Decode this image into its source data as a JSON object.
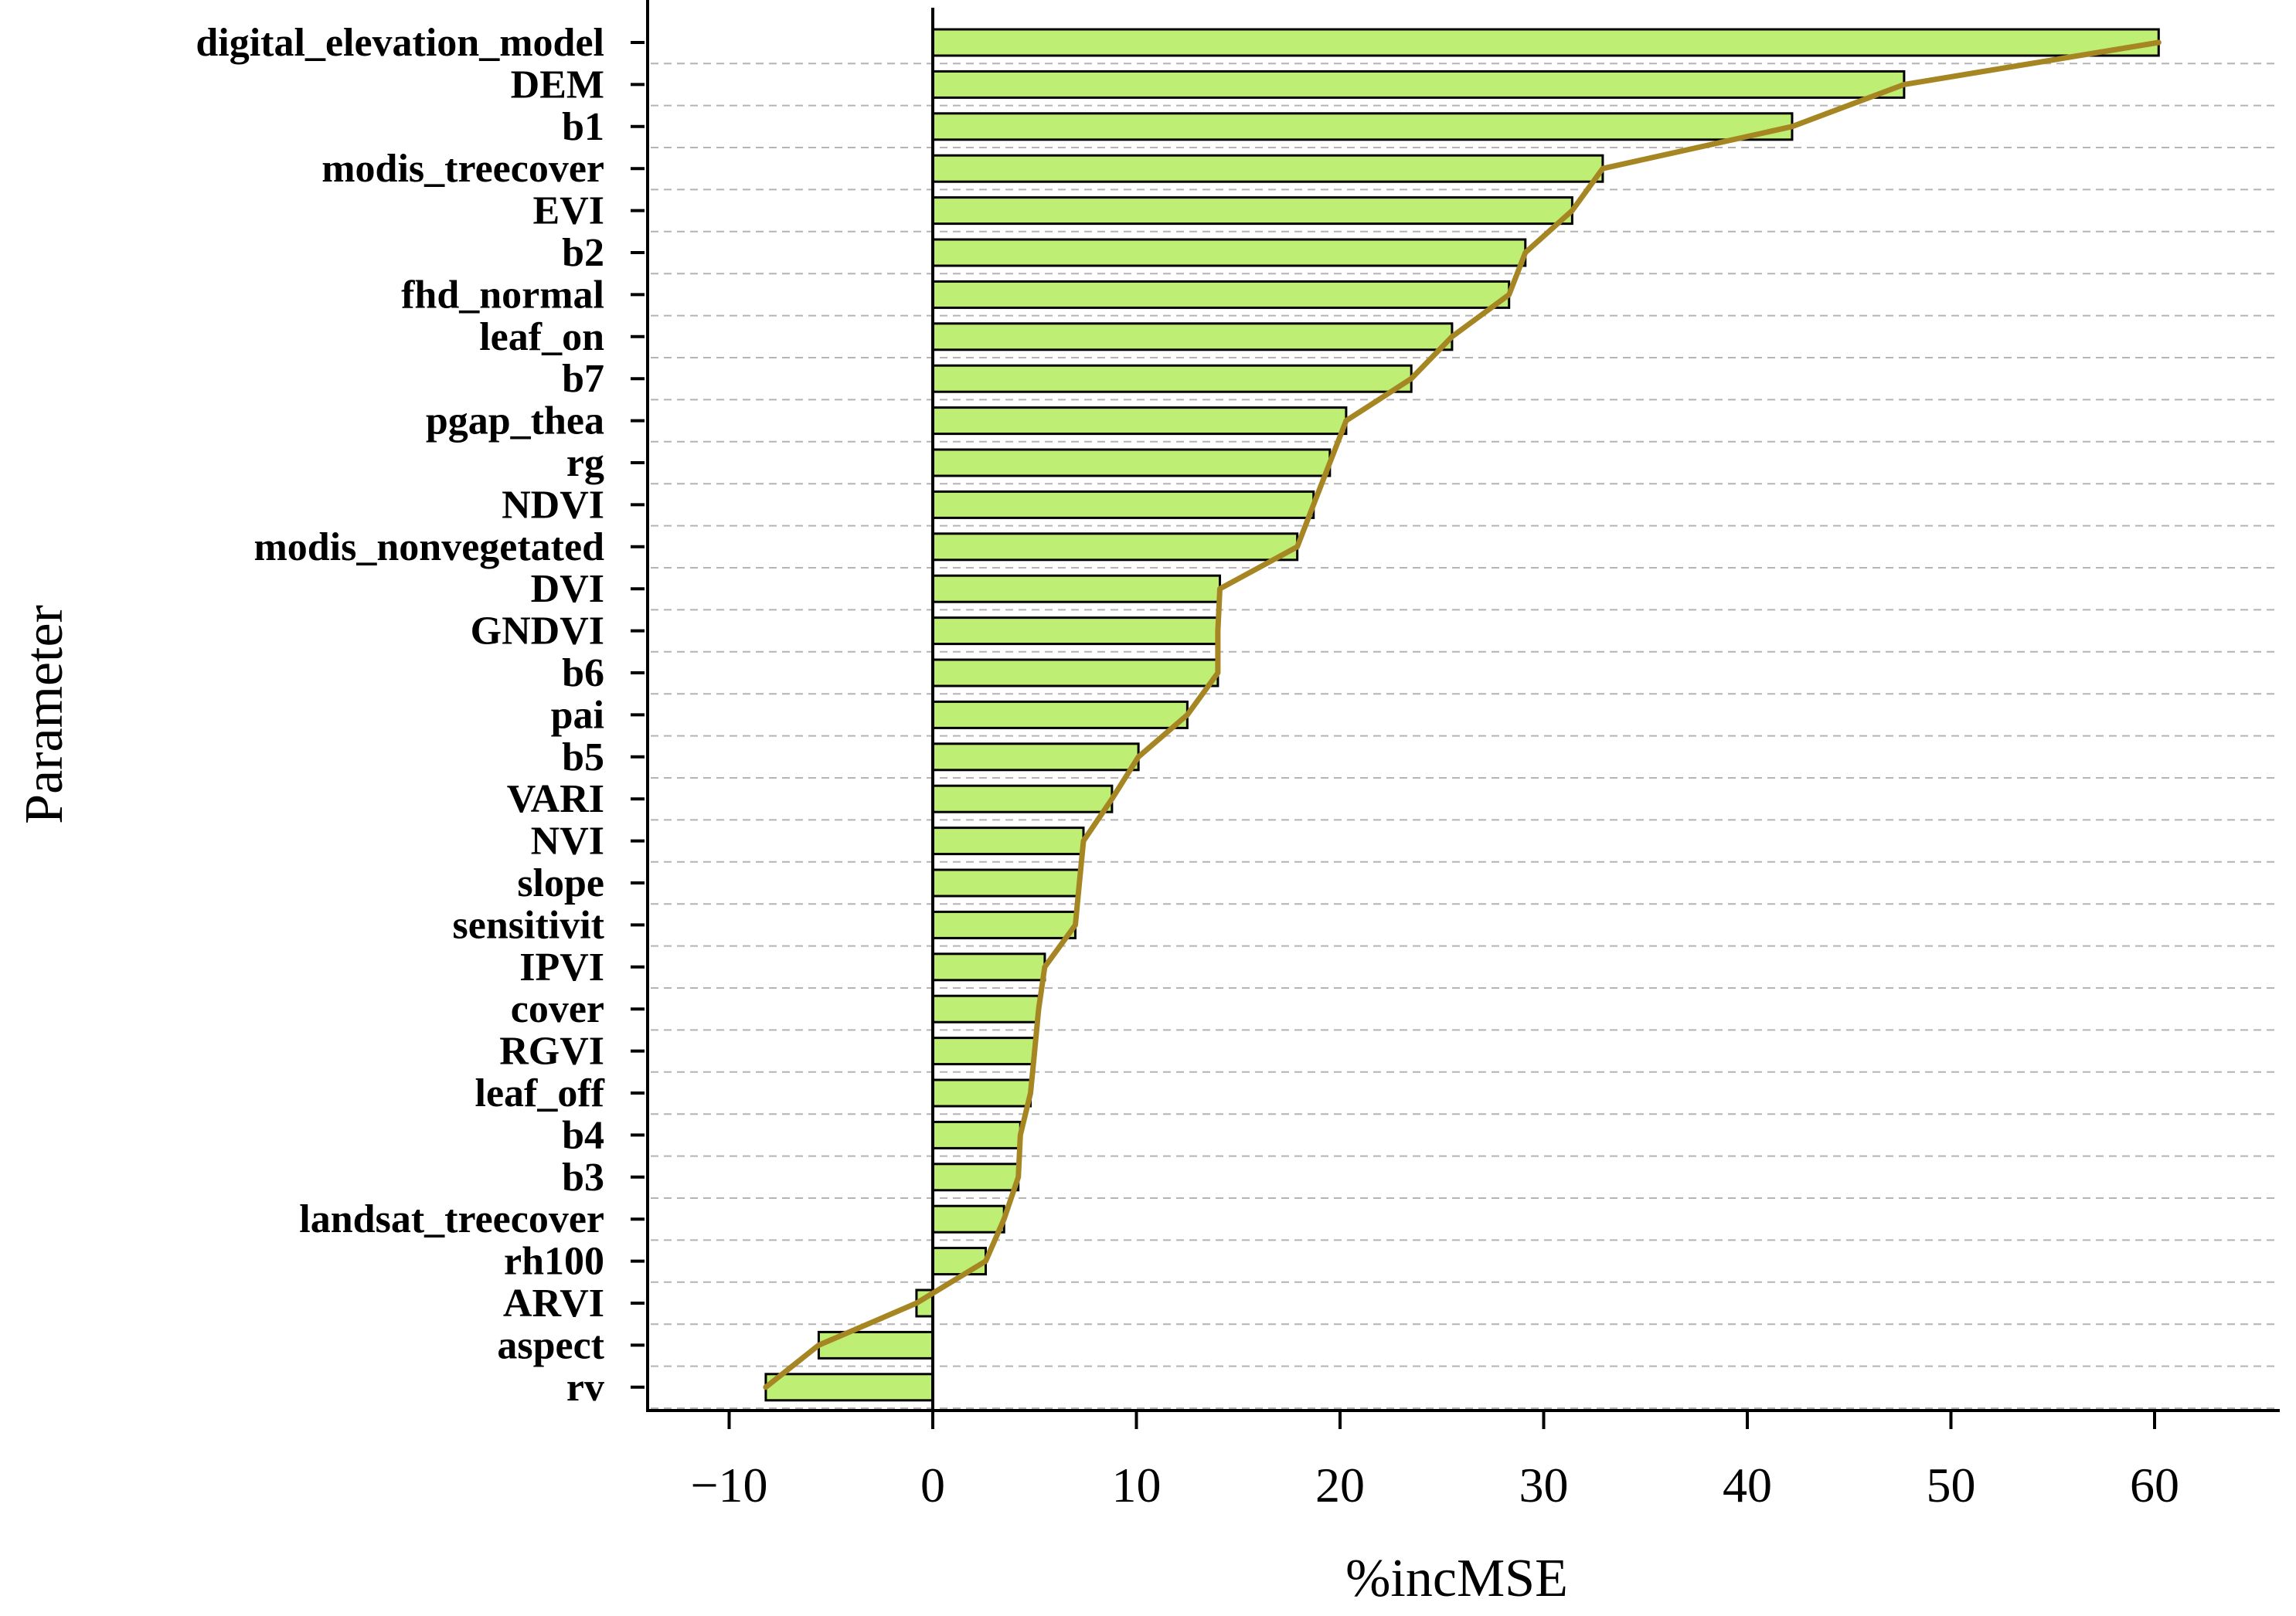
{
  "chart_data": {
    "type": "bar",
    "orientation": "horizontal",
    "xlabel": "%incMSE",
    "ylabel": "Parameter",
    "xlim": [
      -14,
      66
    ],
    "xticks": [
      -10,
      0,
      10,
      20,
      30,
      40,
      50,
      60
    ],
    "xtick_labels": [
      "−10",
      "0",
      "10",
      "20",
      "30",
      "40",
      "50",
      "60"
    ],
    "grid": "horizontal dashed",
    "overlay_line": "connects bar ends",
    "colors": {
      "bar": "#bfee74",
      "line": "#a58622"
    },
    "categories": [
      "digital_elevation_model",
      "DEM",
      "b1",
      "modis_treecover",
      "EVI",
      "b2",
      "fhd_normal",
      "leaf_on",
      "b7",
      "pgap_thea",
      "rg",
      "NDVI",
      "modis_nonvegetated",
      "DVI",
      "GNDVI",
      "b6",
      "pai",
      "b5",
      "VARI",
      "NVI",
      "slope",
      "sensitivit",
      "IPVI",
      "cover",
      "RGVI",
      "leaf_off",
      "b4",
      "b3",
      "landsat_treecover",
      "rh100",
      "ARVI",
      "aspect",
      "rv"
    ],
    "values": [
      60.2,
      47.7,
      42.2,
      32.9,
      31.4,
      29.1,
      28.3,
      25.5,
      23.5,
      20.3,
      19.5,
      18.7,
      17.9,
      14.1,
      14.0,
      14.0,
      12.5,
      10.1,
      8.8,
      7.4,
      7.2,
      7.0,
      5.5,
      5.2,
      5.0,
      4.8,
      4.3,
      4.2,
      3.5,
      2.6,
      -0.8,
      -5.6,
      -8.2
    ]
  }
}
